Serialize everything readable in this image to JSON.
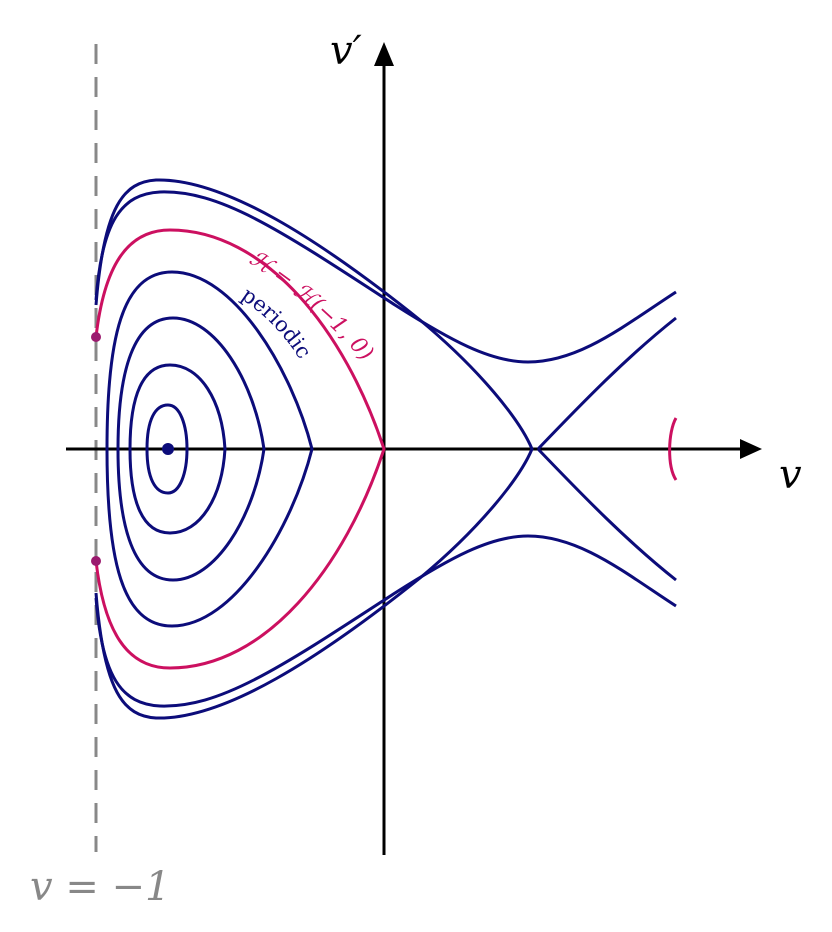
{
  "axes": {
    "x_label": "v",
    "y_label": "v′",
    "asymptote_label": "v = −1"
  },
  "annotations": {
    "separatrix_label": "ℋ = ℋ(−1, 0)",
    "periodic_label": "periodic"
  },
  "colors": {
    "orbit": "#0c0c7a",
    "separatrix": "#cc1060",
    "axis": "#000000",
    "asymptote": "#888888",
    "marker_points": "#9b1a6e"
  }
}
